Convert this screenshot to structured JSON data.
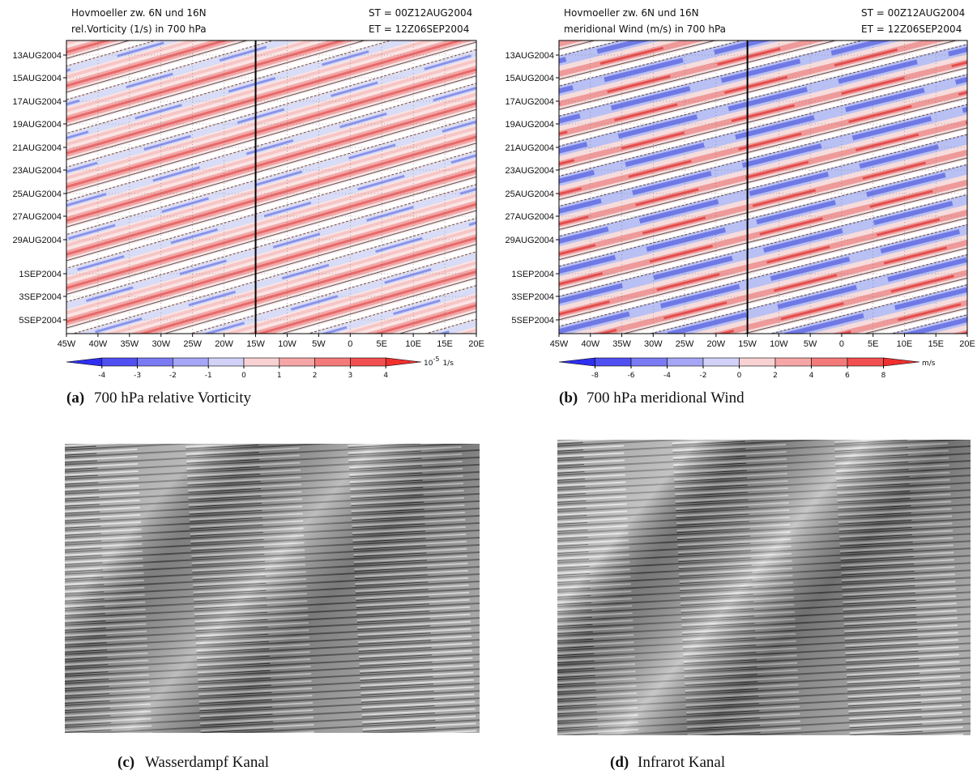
{
  "panels": [
    {
      "title_line1": "Hovmoeller zw. 6N und 16N",
      "title_line2": "rel.Vorticity (1/s) in 700 hPa",
      "start_time": "ST = 00Z12AUG2004",
      "end_time": "ET = 12Z06SEP2004",
      "y_labels": [
        "13AUG2004",
        "15AUG2004",
        "17AUG2004",
        "19AUG2004",
        "21AUG2004",
        "23AUG2004",
        "25AUG2004",
        "27AUG2004",
        "29AUG2004",
        "1SEP2004",
        "3SEP2004",
        "5SEP2004"
      ],
      "x_labels": [
        "45W",
        "40W",
        "35W",
        "30W",
        "25W",
        "20W",
        "15W",
        "10W",
        "5W",
        "0",
        "5E",
        "10E",
        "15E",
        "20E"
      ],
      "colorbar_labels": [
        -4,
        -3,
        -2,
        -1,
        0,
        1,
        2,
        3,
        4
      ],
      "colorbar_unit": {
        "base": "10",
        "exponent": "-5",
        "rest": "1/s"
      },
      "caption_label": "(a)",
      "caption_text": "700 hPa relative Vorticity"
    },
    {
      "title_line1": "Hovmoeller zw. 6N und 16N",
      "title_line2": "meridional Wind (m/s) in 700 hPa",
      "start_time": "ST = 00Z12AUG2004",
      "end_time": "ET = 12Z06SEP2004",
      "y_labels": [
        "13AUG2004",
        "15AUG2004",
        "17AUG2004",
        "19AUG2004",
        "21AUG2004",
        "23AUG2004",
        "25AUG2004",
        "27AUG2004",
        "29AUG2004",
        "1SEP2004",
        "3SEP2004",
        "5SEP2004"
      ],
      "x_labels": [
        "45W",
        "40W",
        "35W",
        "30W",
        "25W",
        "20W",
        "15W",
        "10W",
        "5W",
        "0",
        "5E",
        "10E",
        "15E",
        "20E"
      ],
      "colorbar_labels": [
        -8,
        -6,
        -4,
        -2,
        0,
        2,
        4,
        6,
        8
      ],
      "colorbar_unit": {
        "rest": "m/s"
      },
      "caption_label": "(b)",
      "caption_text": "700 hPa meridional Wind"
    }
  ],
  "images": [
    {
      "caption_label": "(c)",
      "caption_text": "Wasserdampf Kanal"
    },
    {
      "caption_label": "(d)",
      "caption_text": "Infrarot Kanal"
    }
  ]
}
